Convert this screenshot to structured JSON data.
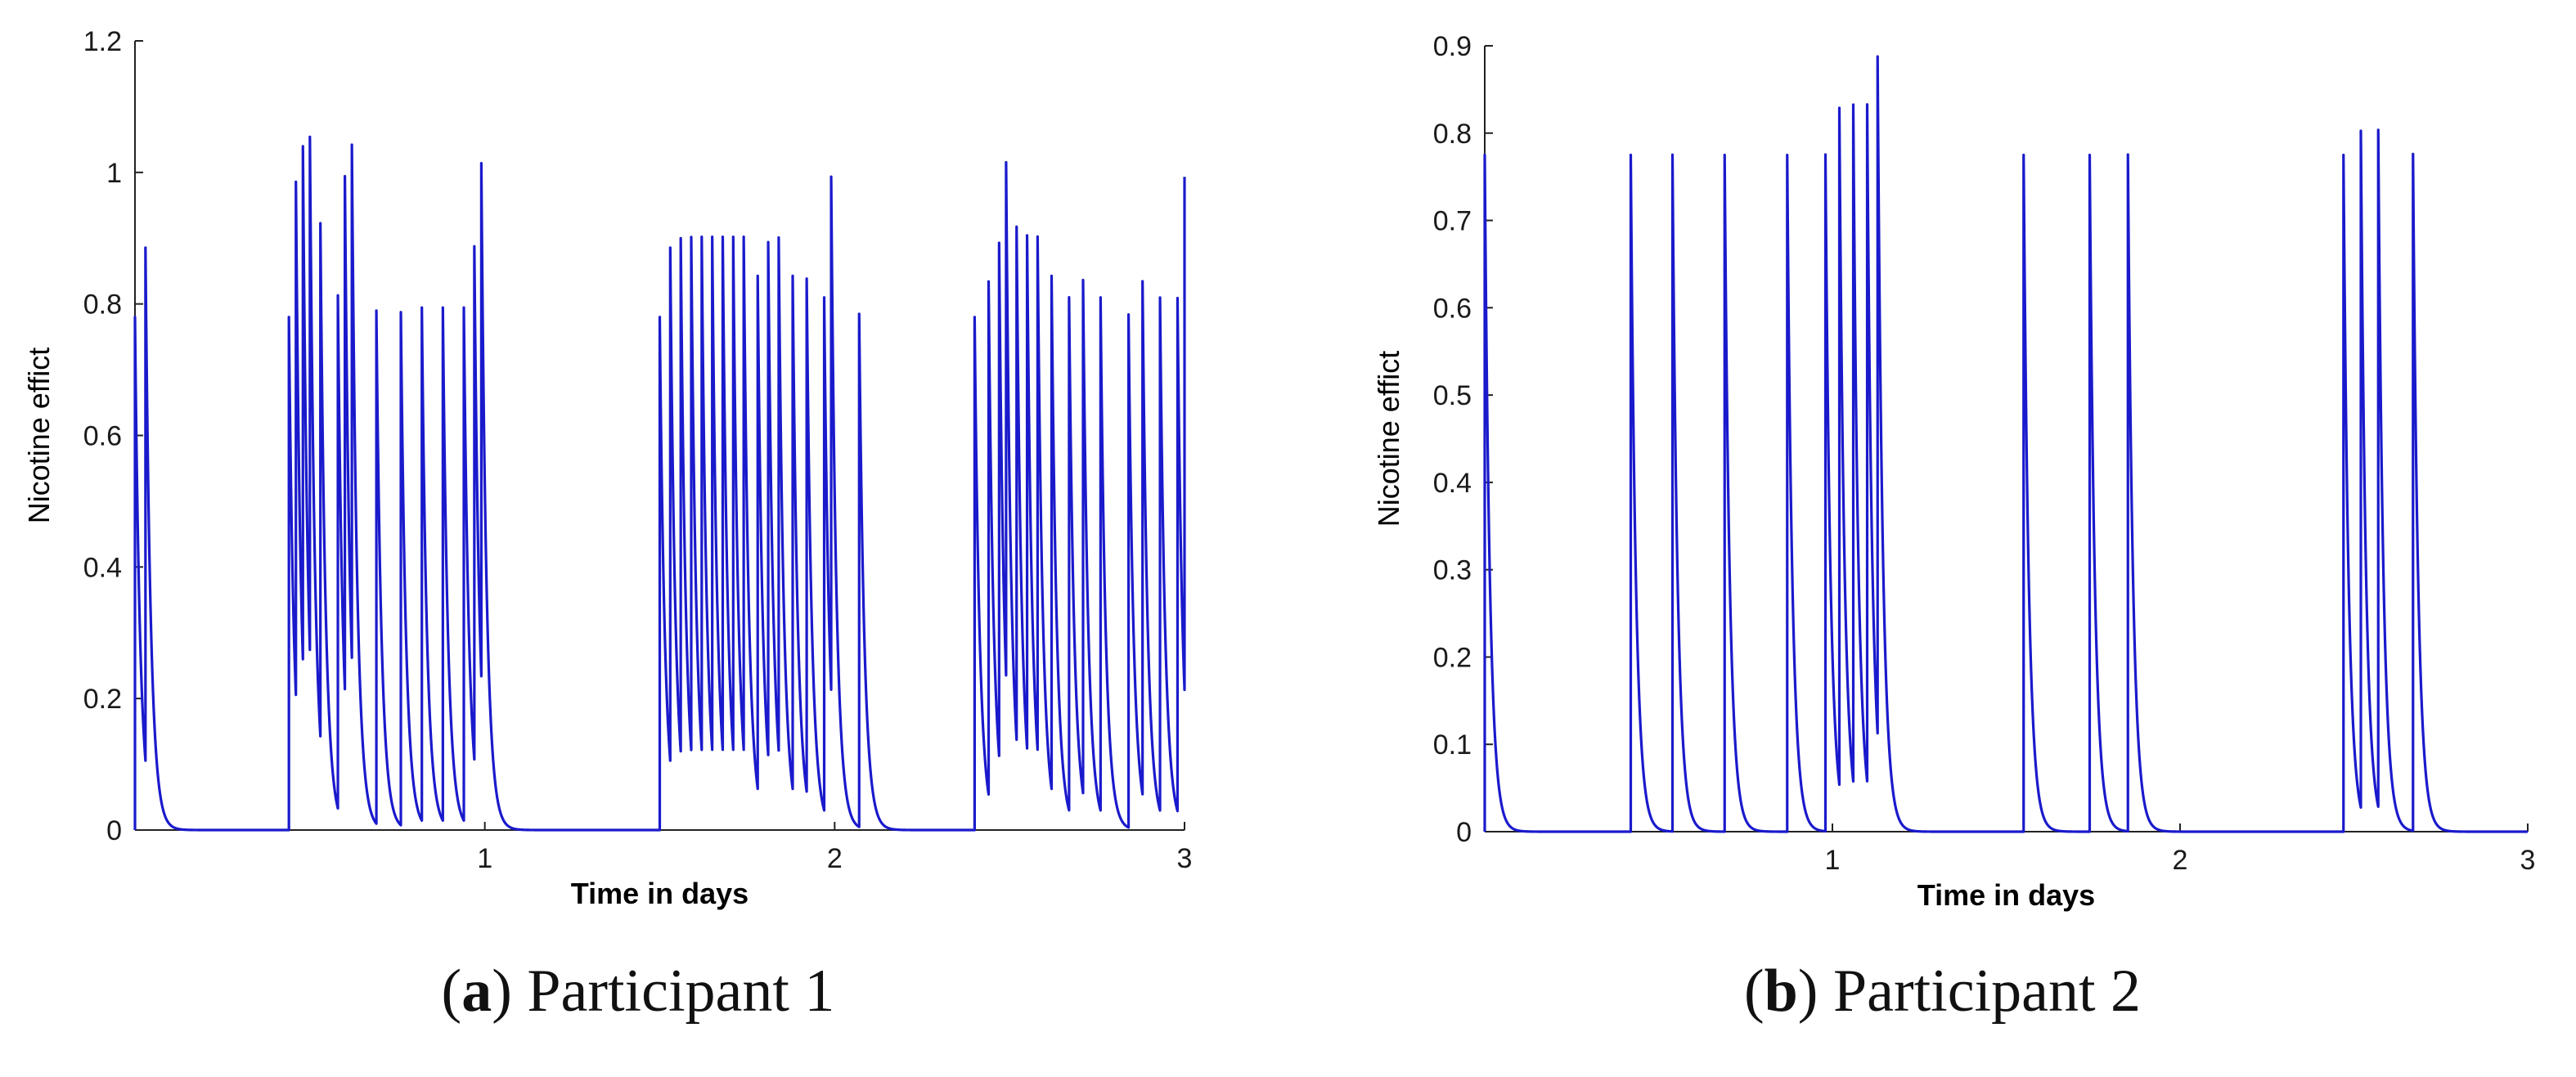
{
  "chart_data": [
    {
      "type": "line",
      "panel_label": "a",
      "caption": "Participant 1",
      "xlabel": "Time in days",
      "ylabel": "Nicotine effict",
      "xlim": [
        0,
        3
      ],
      "ylim": [
        0,
        1.2
      ],
      "xticks": [
        1,
        2,
        3
      ],
      "xtick_labels": [
        "1",
        "2",
        "3"
      ],
      "yticks": [
        0,
        0.2,
        0.4,
        0.6,
        0.8,
        1,
        1.2
      ],
      "ytick_labels": [
        "0",
        "0.2",
        "0.4",
        "0.6",
        "0.8",
        "1",
        "1.2"
      ],
      "grid": false,
      "line_color": "#1a1acc",
      "decay_time_constant_days": 0.015,
      "dose_times": [
        0.0,
        0.03,
        0.44,
        0.46,
        0.48,
        0.5,
        0.53,
        0.58,
        0.6,
        0.62,
        0.69,
        0.76,
        0.82,
        0.88,
        0.94,
        0.97,
        0.99,
        1.5,
        1.53,
        1.56,
        1.59,
        1.62,
        1.65,
        1.68,
        1.71,
        1.74,
        1.78,
        1.81,
        1.84,
        1.88,
        1.92,
        1.97,
        1.99,
        2.07,
        2.4,
        2.44,
        2.47,
        2.49,
        2.52,
        2.55,
        2.58,
        2.62,
        2.67,
        2.71,
        2.76,
        2.84,
        2.88,
        2.93,
        2.98,
        3.0
      ],
      "dose_amplitudes": [
        0.78,
        0.78,
        0.78,
        0.78,
        0.78,
        0.78,
        0.78,
        0.78,
        0.78,
        0.78,
        0.78,
        0.78,
        0.78,
        0.78,
        0.78,
        0.78,
        0.78,
        0.78,
        0.78,
        0.78,
        0.78,
        0.78,
        0.78,
        0.78,
        0.78,
        0.78,
        0.78,
        0.78,
        0.78,
        0.78,
        0.78,
        0.78,
        0.78,
        0.78,
        0.78,
        0.78,
        0.78,
        0.78,
        0.78,
        0.78,
        0.78,
        0.78,
        0.78,
        0.78,
        0.78,
        0.78,
        0.78,
        0.78,
        0.78,
        0.78
      ]
    },
    {
      "type": "line",
      "panel_label": "b",
      "caption": "Participant 2",
      "xlabel": "Time in days",
      "ylabel": "Nicotine effict",
      "xlim": [
        0,
        3
      ],
      "ylim": [
        0,
        0.9
      ],
      "xticks": [
        1,
        2,
        3
      ],
      "xtick_labels": [
        "1",
        "2",
        "3"
      ],
      "yticks": [
        0,
        0.1,
        0.2,
        0.3,
        0.4,
        0.5,
        0.6,
        0.7,
        0.8,
        0.9
      ],
      "ytick_labels": [
        "0",
        "0.1",
        "0.2",
        "0.3",
        "0.4",
        "0.5",
        "0.6",
        "0.7",
        "0.8",
        "0.9"
      ],
      "grid": false,
      "line_color": "#1a1acc",
      "decay_time_constant_days": 0.015,
      "dose_times": [
        0.0,
        0.42,
        0.54,
        0.69,
        0.87,
        0.98,
        1.02,
        1.06,
        1.1,
        1.13,
        1.55,
        1.74,
        1.85,
        2.47,
        2.52,
        2.57,
        2.67
      ],
      "dose_amplitudes": [
        0.775,
        0.775,
        0.775,
        0.775,
        0.775,
        0.775,
        0.775,
        0.775,
        0.775,
        0.775,
        0.775,
        0.775,
        0.775,
        0.775,
        0.775,
        0.775,
        0.775
      ]
    }
  ]
}
